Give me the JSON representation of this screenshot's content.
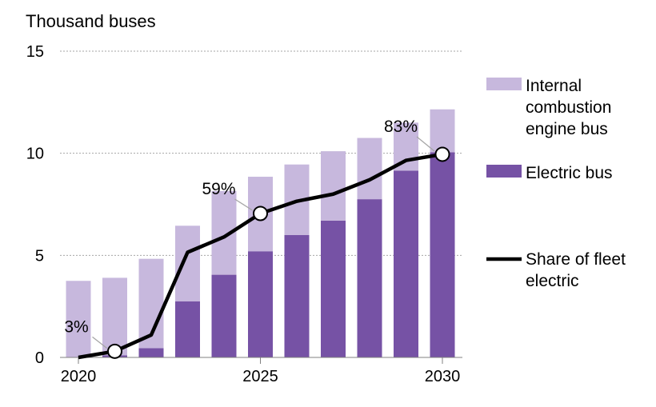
{
  "chart_data": {
    "type": "bar",
    "stacked": true,
    "ylabel": "Thousand buses",
    "ylim": [
      0,
      15
    ],
    "yticks": [
      0,
      5,
      10,
      15
    ],
    "xticks": [
      "2020",
      "2025",
      "2030"
    ],
    "categories": [
      "2020",
      "2021",
      "2022",
      "2023",
      "2024",
      "2025",
      "2026",
      "2027",
      "2028",
      "2029",
      "2030"
    ],
    "series": [
      {
        "name": "Electric bus",
        "kind": "bar",
        "color": "#7652a5",
        "values": [
          0.0,
          0.1,
          0.45,
          2.75,
          4.05,
          5.2,
          6.0,
          6.7,
          7.75,
          9.15,
          10.05
        ]
      },
      {
        "name": "Internal combustion engine bus",
        "kind": "bar",
        "color": "#c7b8dd",
        "values": [
          3.75,
          3.8,
          4.38,
          3.7,
          4.1,
          3.65,
          3.45,
          3.4,
          3.0,
          2.35,
          2.1
        ]
      },
      {
        "name": "Share of fleet electric",
        "kind": "line",
        "color": "#000000",
        "values": [
          0.0,
          0.3,
          1.1,
          5.15,
          5.9,
          7.05,
          7.65,
          8.0,
          8.7,
          9.65,
          9.95
        ]
      }
    ],
    "annotations": [
      {
        "text": "3%",
        "category": "2021"
      },
      {
        "text": "59%",
        "category": "2025"
      },
      {
        "text": "83%",
        "category": "2030"
      }
    ],
    "legend": [
      {
        "lines": [
          "Internal",
          "combustion",
          "engine bus"
        ],
        "swatch": "bar",
        "color": "#c7b8dd"
      },
      {
        "lines": [
          "Electric bus"
        ],
        "swatch": "bar",
        "color": "#7652a5"
      },
      {
        "lines": [
          "Share of fleet",
          "electric"
        ],
        "swatch": "line",
        "color": "#000000"
      }
    ],
    "legend_position": "right",
    "grid": "horizontal-dashed"
  }
}
